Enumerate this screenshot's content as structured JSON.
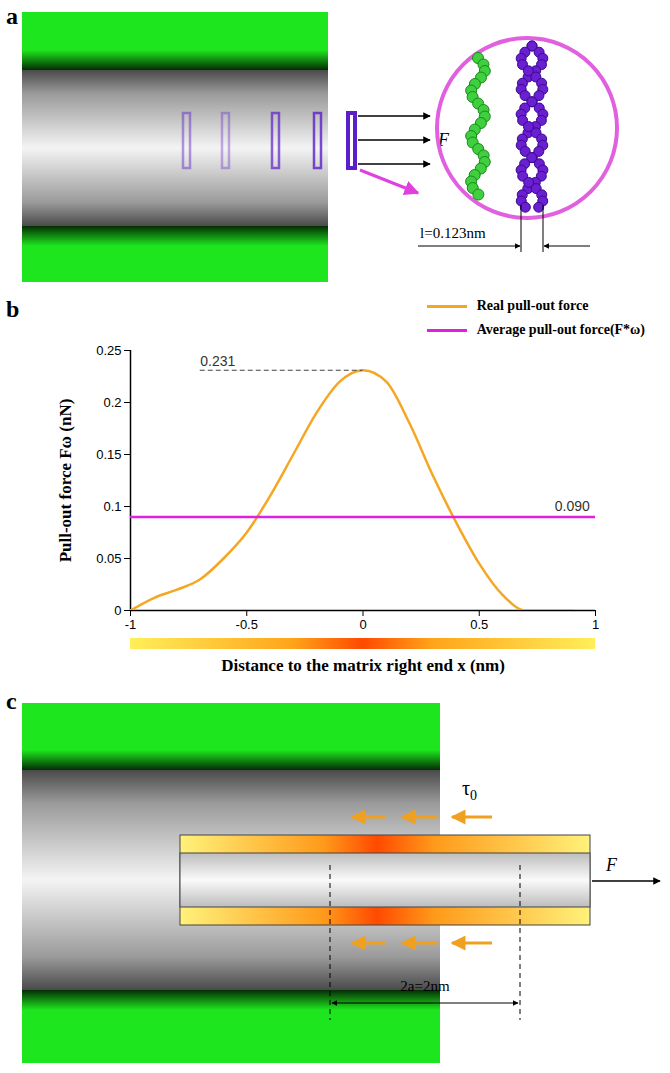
{
  "panel_a": {
    "letter": "a",
    "force_label": "F",
    "spacing_label": "l=0.123nm"
  },
  "chart_data": {
    "letter": "b",
    "type": "line",
    "x_label": "Distance to the matrix right end x (nm)",
    "y_label": "Pull-out force Fω (nN)",
    "series": [
      {
        "name": "Real pull-out force",
        "color": "#f5a623",
        "x": [
          -1,
          -0.9,
          -0.8,
          -0.7,
          -0.6,
          -0.5,
          -0.4,
          -0.3,
          -0.2,
          -0.1,
          0,
          0.1,
          0.2,
          0.3,
          0.4,
          0.5,
          0.6,
          0.7,
          0.8,
          0.9
        ],
        "values": [
          0,
          0.012,
          0.02,
          0.03,
          0.05,
          0.075,
          0.11,
          0.15,
          0.19,
          0.22,
          0.231,
          0.22,
          0.18,
          0.13,
          0.085,
          0.045,
          0.015,
          0,
          0,
          0
        ]
      },
      {
        "name": "Average pull-out force(F*ω)",
        "color": "#e020e0",
        "x": [
          -1,
          1
        ],
        "values": [
          0.09,
          0.09
        ]
      }
    ],
    "xlim": [
      -1,
      1
    ],
    "ylim": [
      0,
      0.25
    ],
    "xticks": [
      -1,
      -0.5,
      0,
      0.5,
      1
    ],
    "yticks": [
      0,
      0.05,
      0.1,
      0.15,
      0.2,
      0.25
    ],
    "annotations": [
      {
        "text": "0.231",
        "x": -0.7,
        "y": 0.231
      },
      {
        "text": "0.090",
        "x": 0.9,
        "y": 0.09
      }
    ],
    "legend": "top right"
  },
  "panel_c": {
    "letter": "c",
    "shear_label": "τ0",
    "force_label": "F",
    "length_label": "2a=2nm"
  }
}
